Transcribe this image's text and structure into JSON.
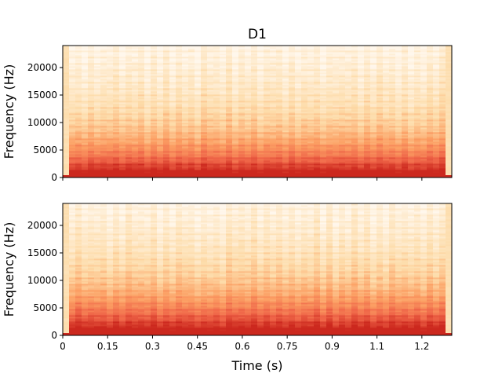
{
  "chart_data": {
    "type": "heatmap",
    "title": "D1",
    "xlabel": "Time (s)",
    "colormap": "OrRd",
    "subplots": [
      {
        "name": "top-spectrogram",
        "ylabel": "Frequency (Hz)",
        "ylim": [
          0,
          24000
        ],
        "yticks": [
          "0",
          "5000",
          "10000",
          "15000",
          "20000"
        ],
        "xlim": [
          0,
          1.3
        ],
        "show_xtick_labels": false
      },
      {
        "name": "bottom-spectrogram",
        "ylabel": "Frequency (Hz)",
        "ylim": [
          0,
          24000
        ],
        "yticks": [
          "0",
          "5000",
          "10000",
          "15000",
          "20000"
        ],
        "xlim": [
          0,
          1.3
        ],
        "show_xtick_labels": true
      }
    ],
    "xticks": [
      "0",
      "0.15",
      "0.3",
      "0.45",
      "0.6",
      "0.75",
      "0.9",
      "1.1",
      "1.2"
    ],
    "xtick_values": [
      0,
      0.15,
      0.3,
      0.45,
      0.6,
      0.75,
      0.9,
      1.05,
      1.2
    ],
    "ytick_values": [
      0,
      5000,
      10000,
      15000,
      20000
    ]
  }
}
